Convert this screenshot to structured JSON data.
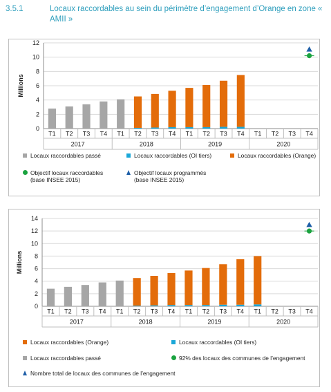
{
  "section": {
    "number": "3.5.1",
    "title": "Locaux raccordables au sein du périmètre d’engagement d’Orange en zone « AMII »"
  },
  "colors": {
    "passe": "#a6a6a6",
    "oi_tiers": "#1aa7d8",
    "orange": "#e36c0a",
    "objectif": "#1aa33f",
    "programmes": "#1f5fa8",
    "heading": "#2f9fbd"
  },
  "chart_data": [
    {
      "type": "bar",
      "ylabel": "Millions",
      "ylim": [
        0,
        12
      ],
      "yticks": [
        0,
        2,
        4,
        6,
        8,
        10,
        12
      ],
      "grid": true,
      "categories": [
        "T1",
        "T2",
        "T3",
        "T4",
        "T1",
        "T2",
        "T3",
        "T4",
        "T1",
        "T2",
        "T3",
        "T4",
        "T1",
        "T2",
        "T3",
        "T4"
      ],
      "groups": [
        {
          "label": "2017",
          "span": 4
        },
        {
          "label": "2018",
          "span": 4
        },
        {
          "label": "2019",
          "span": 4
        },
        {
          "label": "2020",
          "span": 4
        }
      ],
      "series": [
        {
          "name": "Locaux raccordables passé",
          "key": "passe",
          "values": [
            2.8,
            3.1,
            3.4,
            3.8,
            4.1,
            null,
            null,
            null,
            null,
            null,
            null,
            null,
            null,
            null,
            null,
            null
          ]
        },
        {
          "name": "Locaux raccordables (OI tiers)",
          "key": "oi_tiers",
          "values": [
            null,
            null,
            null,
            null,
            null,
            0.1,
            0.15,
            0.2,
            0.2,
            0.2,
            0.25,
            0.25,
            null,
            null,
            null,
            null
          ]
        },
        {
          "name": "Locaux raccordables (Orange)",
          "key": "orange",
          "values": [
            null,
            null,
            null,
            null,
            null,
            4.4,
            4.7,
            5.1,
            5.5,
            5.9,
            6.45,
            7.25,
            null,
            null,
            null,
            null
          ]
        }
      ],
      "markers": [
        {
          "name": "Objectif locaux raccordables",
          "name_line2": "(base INSEE 2015)",
          "key": "objectif",
          "shape": "circle",
          "category_index": 15,
          "value": 10.2
        },
        {
          "name": "Objectif locaux programmés",
          "name_line2": "(base INSEE 2015)",
          "key": "programmes",
          "shape": "triangle",
          "category_index": 15,
          "value": 11.1
        }
      ],
      "legend_position": "bottom"
    },
    {
      "type": "bar",
      "ylabel": "Millions",
      "ylim": [
        0,
        14
      ],
      "yticks": [
        0,
        2,
        4,
        6,
        8,
        10,
        12,
        14
      ],
      "grid": true,
      "categories": [
        "T1",
        "T2",
        "T3",
        "T4",
        "T1",
        "T2",
        "T3",
        "T4",
        "T1",
        "T2",
        "T3",
        "T4",
        "T1",
        "T2",
        "T3",
        "T4"
      ],
      "groups": [
        {
          "label": "2017",
          "span": 4
        },
        {
          "label": "2018",
          "span": 4
        },
        {
          "label": "2019",
          "span": 4
        },
        {
          "label": "2020",
          "span": 4
        }
      ],
      "series": [
        {
          "name": "Locaux raccordables passé",
          "key": "passe",
          "values": [
            2.8,
            3.1,
            3.4,
            3.8,
            4.1,
            null,
            null,
            null,
            null,
            null,
            null,
            null,
            null,
            null,
            null,
            null
          ]
        },
        {
          "name": "Locaux raccordables (OI tiers)",
          "key": "oi_tiers",
          "values": [
            null,
            null,
            null,
            null,
            null,
            0.1,
            0.15,
            0.2,
            0.2,
            0.2,
            0.25,
            0.25,
            0.3,
            null,
            null,
            null
          ]
        },
        {
          "name": "Locaux raccordables (Orange)",
          "key": "orange",
          "values": [
            null,
            null,
            null,
            null,
            null,
            4.4,
            4.7,
            5.1,
            5.5,
            5.9,
            6.45,
            7.25,
            7.7,
            null,
            null,
            null
          ]
        }
      ],
      "markers": [
        {
          "name": "92% des locaux des communes de l’engagement",
          "key": "objectif",
          "shape": "circle",
          "category_index": 15,
          "value": 12.0
        },
        {
          "name": "Nombre total de locaux des communes de l’engagement",
          "key": "programmes",
          "shape": "triangle",
          "category_index": 15,
          "value": 13.0
        }
      ],
      "legend_position": "bottom"
    }
  ]
}
